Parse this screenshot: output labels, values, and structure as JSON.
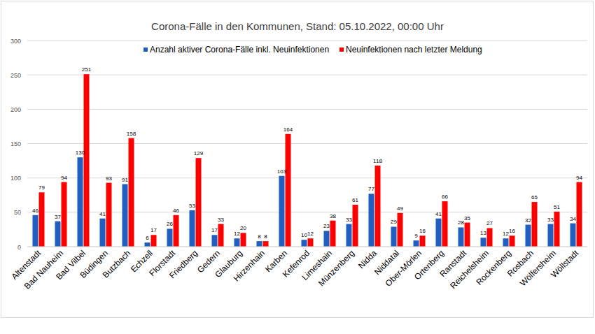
{
  "chart_data": {
    "type": "bar",
    "title": "Corona-Fälle in den Kommunen, Stand: 05.10.2022, 00:00 Uhr",
    "categories": [
      "Altenstadt",
      "Bad Nauheim",
      "Bad Vilbel",
      "Büdingen",
      "Butzbach",
      "Echzell",
      "Florstadt",
      "Friedberg",
      "Gedern",
      "Glauburg",
      "Hirzenhain",
      "Karben",
      "Kefenrod",
      "Limeshain",
      "Münzenberg",
      "Nidda",
      "Niddatal",
      "Ober-Mörlen",
      "Ortenberg",
      "Ranstadt",
      "Reichelsheim",
      "Rockenberg",
      "Rosbach",
      "Wölfersheim",
      "Wöllstadt"
    ],
    "series": [
      {
        "name": "Anzahl aktiver Corona-Fälle inkl. Neuinfektionen",
        "color": "#1f5fbf",
        "values": [
          46,
          37,
          130,
          41,
          91,
          6,
          26,
          53,
          17,
          12,
          8,
          103,
          10,
          23,
          33,
          77,
          29,
          9,
          41,
          28,
          13,
          12,
          32,
          33,
          34
        ]
      },
      {
        "name": "Neuinfektionen nach letzter Meldung",
        "color": "#ff0000",
        "values": [
          79,
          94,
          251,
          93,
          158,
          17,
          46,
          129,
          33,
          20,
          8,
          164,
          12,
          38,
          61,
          118,
          49,
          16,
          66,
          35,
          27,
          16,
          65,
          51,
          94
        ]
      }
    ],
    "ylim": [
      0,
      300
    ],
    "yticks": [
      0,
      50,
      100,
      150,
      200,
      250,
      300
    ],
    "grid": true,
    "legend": "top",
    "data_labels": true
  }
}
